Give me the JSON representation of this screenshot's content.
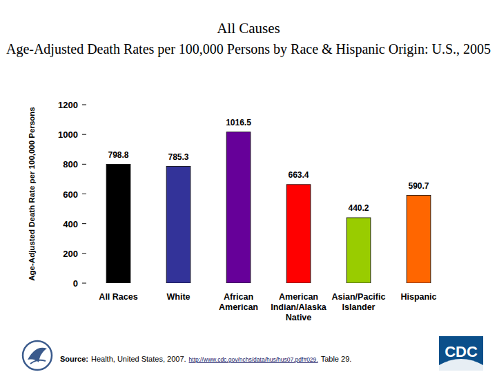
{
  "chart_data": {
    "type": "bar",
    "title": "All Causes",
    "subtitle": "Age-Adjusted Death Rates per 100,000 Persons by Race & Hispanic Origin: U.S., 2005",
    "y_label": "Age-Adjusted Death Rate per 100,000 Persons",
    "categories": [
      "All Races",
      "White",
      "African American",
      "American Indian/Alaska Native",
      "Asian/Pacific Islander",
      "Hispanic"
    ],
    "values": [
      798.8,
      785.3,
      1016.5,
      663.4,
      440.2,
      590.7
    ],
    "colors": [
      "#000000",
      "#333399",
      "#660099",
      "#ff0000",
      "#99cc00",
      "#ff6600"
    ],
    "ylim": [
      0,
      1200
    ],
    "yticks": [
      0,
      200,
      400,
      600,
      800,
      1000,
      1200
    ],
    "grid": false,
    "data_labels": true,
    "source": {
      "label": "Source:",
      "text": "Health, United States, 2007.",
      "url": "http://www.cdc.gov/nchs/data/hus/hus07.pdf#029.",
      "note": "Table 29."
    },
    "logo": "CDC"
  }
}
